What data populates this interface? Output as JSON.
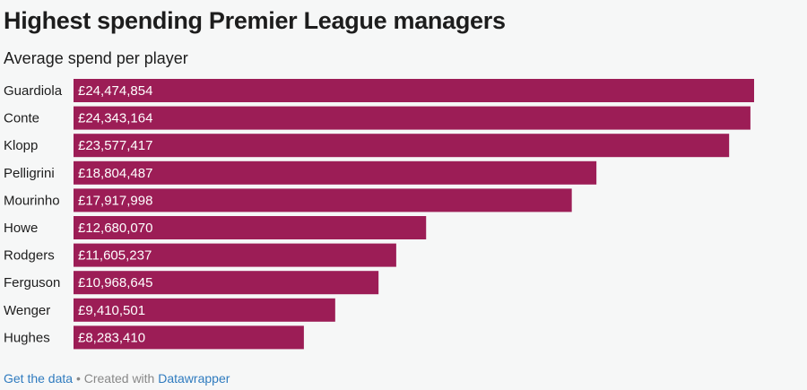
{
  "chart_data": {
    "type": "bar",
    "orientation": "horizontal",
    "title": "Highest spending Premier League managers",
    "subtitle": "Average spend per player",
    "categories": [
      "Guardiola",
      "Conte",
      "Klopp",
      "Pelligrini",
      "Mourinho",
      "Howe",
      "Rodgers",
      "Ferguson",
      "Wenger",
      "Hughes"
    ],
    "values": [
      24474854,
      24343164,
      23577417,
      18804487,
      17917998,
      12680070,
      11605237,
      10968645,
      9410501,
      8283410
    ],
    "value_labels": [
      "£24,474,854",
      "£24,343,164",
      "£23,577,417",
      "£18,804,487",
      "£17,917,998",
      "£12,680,070",
      "£11,605,237",
      "£10,968,645",
      "£9,410,501",
      "£8,283,410"
    ],
    "bar_color": "#9c1d56",
    "grid": false
  },
  "footer": {
    "get_data": "Get the data",
    "separator": " • Created with ",
    "datawrapper": "Datawrapper"
  }
}
